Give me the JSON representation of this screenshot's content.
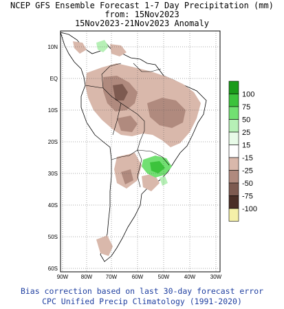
{
  "title": {
    "line1": "NCEP GFS Ensemble Forecast 1-7 Day Precipitation (mm)",
    "line2": "from: 15Nov2023",
    "line3": "15Nov2023-21Nov2023 Anomaly"
  },
  "axes": {
    "lat_labels": [
      "10N",
      "EQ",
      "10S",
      "20S",
      "30S",
      "40S",
      "50S",
      "60S"
    ],
    "lon_labels": [
      "90W",
      "80W",
      "70W",
      "60W",
      "50W",
      "40W",
      "30W"
    ]
  },
  "legend": {
    "items": [
      {
        "label": "100",
        "color": "#1a9b1a"
      },
      {
        "label": "75",
        "color": "#3cc33c"
      },
      {
        "label": "50",
        "color": "#72e072"
      },
      {
        "label": "25",
        "color": "#b6f0b6"
      },
      {
        "label": "15",
        "color": "#e8fbe8"
      },
      {
        "label": "-15",
        "color": "#ffffff"
      },
      {
        "label": "-25",
        "color": "#d9b8ab"
      },
      {
        "label": "-50",
        "color": "#b08a7e"
      },
      {
        "label": "-75",
        "color": "#7d5a50"
      },
      {
        "label": "-100",
        "color": "#4a2e26"
      },
      {
        "label": "",
        "color": "#f5f0a8"
      }
    ]
  },
  "footer": {
    "line1": "Bias correction based on last 30-day forecast error",
    "line2": "CPC Unified Precip Climatology (1991-2020)"
  }
}
